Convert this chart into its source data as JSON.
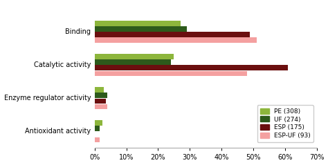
{
  "categories": [
    "Binding",
    "Catalytic activity",
    "Enzyme regulator activity",
    "Antioxidant activity"
  ],
  "series": {
    "PE (308)": [
      27,
      25,
      3.0,
      2.5
    ],
    "UF (274)": [
      29,
      24,
      4.0,
      1.5
    ],
    "ESP (175)": [
      49,
      61,
      3.5,
      0.0
    ],
    "ESP-UF (93)": [
      51,
      48,
      4.0,
      1.5
    ]
  },
  "colors": {
    "PE (308)": "#8db63c",
    "UF (274)": "#2d5a1b",
    "ESP (175)": "#6b0f0f",
    "ESP-UF (93)": "#f4a0a0"
  },
  "xlim": [
    0,
    70
  ],
  "xticks": [
    0,
    10,
    20,
    30,
    40,
    50,
    60,
    70
  ],
  "bar_height": 0.17,
  "figsize": [
    4.74,
    2.39
  ],
  "dpi": 100,
  "background": "#ffffff"
}
